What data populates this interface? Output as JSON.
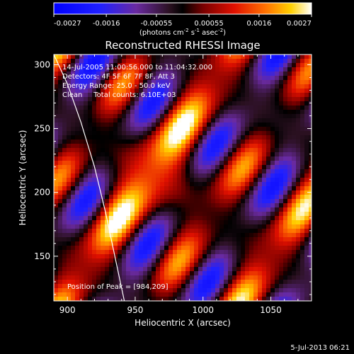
{
  "chart_data": {
    "type": "heatmap",
    "title": "Reconstructed RHESSI Image",
    "colorbar": {
      "ticks": [
        "-0.0027",
        "-0.0016",
        "-0.00055",
        "0.00055",
        "0.0016",
        "0.0027"
      ],
      "range": [
        -0.0027,
        0.0027
      ],
      "unit_text": "(photons cm",
      "unit_sup1": "-2",
      "unit_mid": " s",
      "unit_sup2": "-1",
      "unit_mid2": " asec",
      "unit_sup3": "-2",
      "unit_end": ")"
    },
    "xlabel": "Heliocentric X (arcsec)",
    "ylabel": "Heliocentric Y (arcsec)",
    "xlim": [
      890,
      1080
    ],
    "ylim": [
      115,
      308
    ],
    "xticks": [
      900,
      950,
      1000,
      1050
    ],
    "yticks": [
      150,
      200,
      250,
      300
    ],
    "annotations": [
      "14-Jul-2005 11:00:56.000 to 11:04:32.000",
      "Detectors: 4F 5F 6F 7F 8F, Att 3",
      "Energy Range: 25.0 - 50.0 keV",
      "Clean     Total counts: 6.10E+03"
    ],
    "peak_label": "Position of Peak = [984,209]",
    "peak": [
      984,
      209
    ],
    "limb_curve": [
      [
        890,
        308
      ],
      [
        900,
        285
      ],
      [
        910,
        255
      ],
      [
        920,
        220
      ],
      [
        928,
        185
      ],
      [
        935,
        150
      ],
      [
        942,
        115
      ]
    ]
  },
  "footer": {
    "date": "5-Jul-2013 06:21"
  }
}
